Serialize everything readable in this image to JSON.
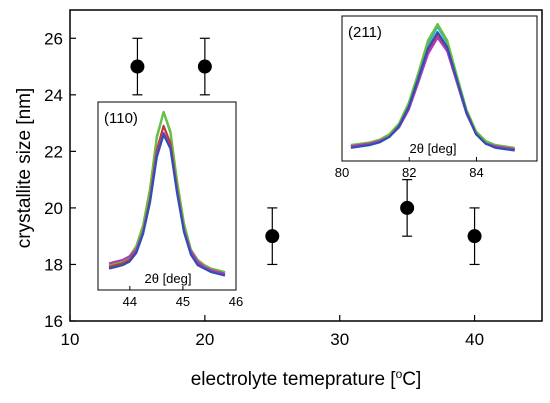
{
  "chart_data": [
    {
      "type": "scatter",
      "title": "",
      "xlabel": "electrolyte temeprature [",
      "xlabel_unit_sup": "o",
      "xlabel_unit_tail": "C]",
      "ylabel": "crystallite size [nm]",
      "xlim": [
        10,
        45
      ],
      "ylim": [
        16,
        27
      ],
      "x_ticks": [
        "10",
        "20",
        "30",
        "40"
      ],
      "y_ticks": [
        "16",
        "18",
        "20",
        "22",
        "24",
        "26"
      ],
      "grid": false,
      "legend": "none",
      "points": [
        {
          "x": 15,
          "y": 25,
          "yerr": 1
        },
        {
          "x": 20,
          "y": 25,
          "yerr": 1
        },
        {
          "x": 25,
          "y": 19,
          "yerr": 1
        },
        {
          "x": 35,
          "y": 20,
          "yerr": 1
        },
        {
          "x": 40,
          "y": 19,
          "yerr": 1
        }
      ],
      "marker_color": "#000000"
    },
    {
      "type": "line",
      "title": "(110)",
      "xlabel": "2θ [deg]",
      "xlim": [
        43.4,
        46
      ],
      "x_ticks": [
        "44",
        "45",
        "46"
      ],
      "peak_center": 44.7,
      "series": [
        {
          "color": "#2fb8b4",
          "values": [
            0.11,
            0.12,
            0.13,
            0.16,
            0.22,
            0.34,
            0.55,
            0.85,
            1.0,
            0.88,
            0.58,
            0.34,
            0.2,
            0.14,
            0.11,
            0.09,
            0.08,
            0.07
          ]
        },
        {
          "color": "#6bbf3a",
          "values": [
            0.12,
            0.13,
            0.14,
            0.17,
            0.23,
            0.35,
            0.56,
            0.86,
            1.0,
            0.89,
            0.6,
            0.36,
            0.21,
            0.15,
            0.12,
            0.1,
            0.09,
            0.08
          ]
        },
        {
          "color": "#c0392b",
          "values": [
            0.11,
            0.12,
            0.13,
            0.15,
            0.2,
            0.31,
            0.5,
            0.78,
            0.92,
            0.82,
            0.55,
            0.32,
            0.19,
            0.13,
            0.1,
            0.09,
            0.08,
            0.07
          ]
        },
        {
          "color": "#b03ab8",
          "values": [
            0.13,
            0.14,
            0.15,
            0.17,
            0.21,
            0.31,
            0.49,
            0.76,
            0.88,
            0.8,
            0.54,
            0.32,
            0.2,
            0.14,
            0.11,
            0.09,
            0.08,
            0.07
          ]
        },
        {
          "color": "#2f4fb8",
          "values": [
            0.1,
            0.11,
            0.12,
            0.14,
            0.19,
            0.3,
            0.48,
            0.74,
            0.87,
            0.79,
            0.53,
            0.31,
            0.18,
            0.12,
            0.1,
            0.08,
            0.07,
            0.06
          ]
        }
      ]
    },
    {
      "type": "line",
      "title": "(211)",
      "xlabel": "2θ [deg]",
      "xlim": [
        80,
        85.8
      ],
      "x_ticks": [
        "80",
        "82",
        "84"
      ],
      "peak_center": 82.7,
      "series": [
        {
          "color": "#2fb8b4",
          "values": [
            0.1,
            0.11,
            0.12,
            0.14,
            0.18,
            0.26,
            0.4,
            0.62,
            0.85,
            0.98,
            0.86,
            0.6,
            0.36,
            0.2,
            0.13,
            0.1,
            0.09,
            0.08
          ]
        },
        {
          "color": "#6bbf3a",
          "values": [
            0.11,
            0.12,
            0.13,
            0.15,
            0.19,
            0.27,
            0.42,
            0.64,
            0.88,
            1.0,
            0.88,
            0.62,
            0.37,
            0.21,
            0.14,
            0.11,
            0.1,
            0.09
          ]
        },
        {
          "color": "#c0392b",
          "values": [
            0.1,
            0.11,
            0.12,
            0.14,
            0.17,
            0.25,
            0.38,
            0.58,
            0.8,
            0.92,
            0.82,
            0.58,
            0.35,
            0.19,
            0.12,
            0.1,
            0.09,
            0.08
          ]
        },
        {
          "color": "#b03ab8",
          "values": [
            0.1,
            0.11,
            0.12,
            0.14,
            0.17,
            0.24,
            0.37,
            0.57,
            0.78,
            0.9,
            0.8,
            0.57,
            0.34,
            0.19,
            0.12,
            0.1,
            0.09,
            0.08
          ]
        },
        {
          "color": "#2f4fb8",
          "values": [
            0.09,
            0.1,
            0.11,
            0.13,
            0.17,
            0.25,
            0.39,
            0.6,
            0.82,
            0.94,
            0.83,
            0.59,
            0.35,
            0.19,
            0.12,
            0.09,
            0.08,
            0.07
          ]
        }
      ]
    }
  ]
}
